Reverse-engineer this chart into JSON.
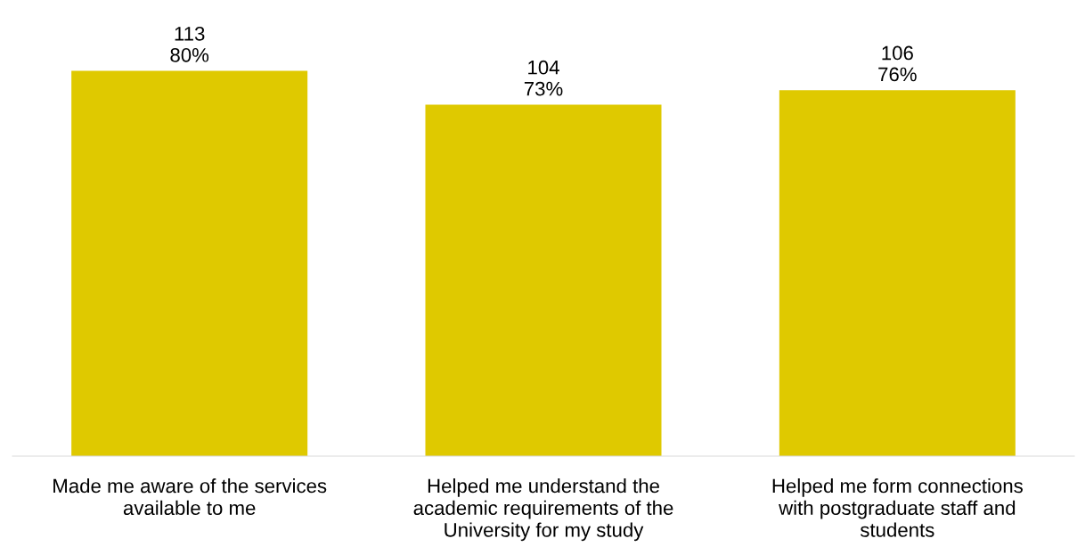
{
  "chart_data": {
    "type": "bar",
    "categories": [
      "Made me aware of the services\navailable to me",
      "Helped me understand the\nacademic requirements of the\nUniversity for my study",
      "Helped me form connections\nwith postgraduate staff and\nstudents"
    ],
    "values": [
      80,
      73,
      76
    ],
    "value_labels": [
      "113\n80%",
      "104\n73%",
      "106\n76%"
    ],
    "color": "#dfc900",
    "tick_labels": "x",
    "grid": false,
    "legend": false
  }
}
